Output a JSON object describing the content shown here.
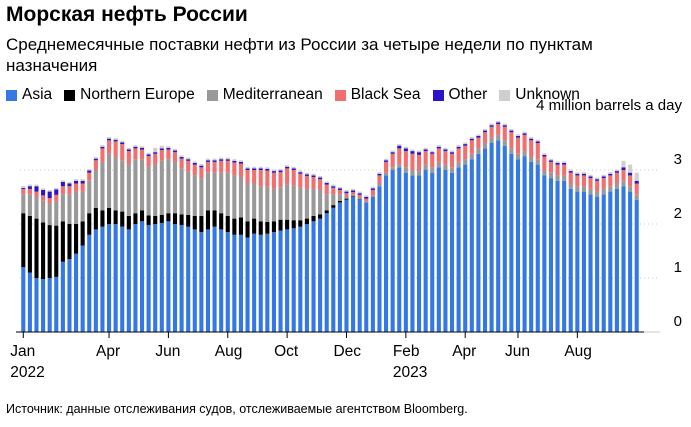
{
  "chart_data": {
    "type": "bar",
    "stacked": true,
    "title": "Морская нефть России",
    "subtitle": "Среднемесячные поставки нефти из России за четыре недели по пунктам назначения",
    "ylabel": "4 million barrels a day",
    "ylim": [
      0,
      4
    ],
    "yticks": [
      0,
      1,
      2,
      3
    ],
    "xticks": [
      {
        "label": "Jan",
        "sub": "2022",
        "week": 0
      },
      {
        "label": "Apr",
        "sub": "",
        "week": 13
      },
      {
        "label": "Jun",
        "sub": "",
        "week": 22
      },
      {
        "label": "Aug",
        "sub": "",
        "week": 31
      },
      {
        "label": "Oct",
        "sub": "",
        "week": 40
      },
      {
        "label": "Dec",
        "sub": "",
        "week": 49
      },
      {
        "label": "Feb",
        "sub": "2023",
        "week": 58
      },
      {
        "label": "Apr",
        "sub": "",
        "week": 67
      },
      {
        "label": "Jun",
        "sub": "",
        "week": 75
      },
      {
        "label": "Aug",
        "sub": "",
        "week": 84
      }
    ],
    "colors": {
      "Asia": "#3478e5",
      "Northern Europe": "#000000",
      "Mediterranean": "#999999",
      "Black Sea": "#f07070",
      "Other": "#2a14c8",
      "Unknown": "#cfcfcf"
    },
    "series": [
      {
        "name": "Asia",
        "values": [
          1.2,
          1.1,
          1.0,
          0.98,
          1.0,
          1.02,
          1.3,
          1.35,
          1.45,
          1.6,
          1.8,
          1.9,
          1.95,
          2.0,
          2.0,
          1.95,
          1.9,
          2.0,
          2.05,
          1.98,
          2.0,
          2.02,
          2.05,
          2.0,
          1.98,
          1.95,
          1.9,
          1.85,
          1.9,
          1.95,
          1.9,
          1.85,
          1.8,
          1.8,
          1.75,
          1.82,
          1.8,
          1.82,
          1.85,
          1.88,
          1.9,
          1.92,
          1.95,
          2.0,
          2.05,
          2.1,
          2.2,
          2.3,
          2.4,
          2.45,
          2.5,
          2.45,
          2.4,
          2.5,
          2.7,
          2.9,
          3.0,
          3.05,
          2.95,
          2.9,
          2.9,
          3.0,
          2.95,
          3.05,
          3.0,
          2.95,
          3.05,
          3.1,
          3.2,
          3.3,
          3.4,
          3.5,
          3.55,
          3.45,
          3.3,
          3.2,
          3.25,
          3.15,
          3.1,
          2.9,
          2.85,
          2.8,
          2.8,
          2.65,
          2.6,
          2.6,
          2.55,
          2.5,
          2.55,
          2.6,
          2.65,
          2.7,
          2.6,
          2.45
        ]
      },
      {
        "name": "Northern Europe",
        "values": [
          1.0,
          1.05,
          1.1,
          1.05,
          0.98,
          0.95,
          0.75,
          0.65,
          0.55,
          0.45,
          0.4,
          0.4,
          0.3,
          0.3,
          0.25,
          0.28,
          0.25,
          0.2,
          0.2,
          0.18,
          0.15,
          0.15,
          0.15,
          0.2,
          0.2,
          0.22,
          0.25,
          0.3,
          0.35,
          0.3,
          0.3,
          0.3,
          0.3,
          0.32,
          0.3,
          0.28,
          0.25,
          0.22,
          0.2,
          0.2,
          0.18,
          0.15,
          0.12,
          0.1,
          0.1,
          0.08,
          0.05,
          0.05,
          0.03,
          0.02,
          0.01,
          0.01,
          0.0,
          0,
          0,
          0,
          0,
          0,
          0,
          0,
          0,
          0,
          0,
          0,
          0,
          0,
          0,
          0,
          0,
          0,
          0,
          0,
          0,
          0,
          0,
          0,
          0,
          0,
          0,
          0,
          0,
          0,
          0,
          0,
          0,
          0,
          0,
          0,
          0,
          0,
          0,
          0,
          0,
          0
        ]
      },
      {
        "name": "Mediterranean",
        "values": [
          0.35,
          0.4,
          0.4,
          0.4,
          0.4,
          0.45,
          0.5,
          0.55,
          0.6,
          0.55,
          0.6,
          0.7,
          0.9,
          1.0,
          1.0,
          0.95,
          0.95,
          1.0,
          0.95,
          0.9,
          0.95,
          1.0,
          1.0,
          0.95,
          0.85,
          0.8,
          0.75,
          0.7,
          0.7,
          0.7,
          0.75,
          0.8,
          0.8,
          0.75,
          0.7,
          0.65,
          0.65,
          0.65,
          0.6,
          0.6,
          0.65,
          0.65,
          0.6,
          0.55,
          0.5,
          0.45,
          0.3,
          0.2,
          0.12,
          0.05,
          0.03,
          0.03,
          0.02,
          0.03,
          0.05,
          0.05,
          0.05,
          0.05,
          0.1,
          0.1,
          0.1,
          0.1,
          0.1,
          0.1,
          0.1,
          0.1,
          0.1,
          0.1,
          0.1,
          0.1,
          0.1,
          0.1,
          0.1,
          0.1,
          0.1,
          0.1,
          0.1,
          0.1,
          0.1,
          0.1,
          0.1,
          0.1,
          0.1,
          0.1,
          0.1,
          0.1,
          0.1,
          0.1,
          0.1,
          0.1,
          0.1,
          0.1,
          0.1,
          0.1
        ]
      },
      {
        "name": "Black Sea",
        "values": [
          0.1,
          0.1,
          0.1,
          0.1,
          0.1,
          0.12,
          0.15,
          0.15,
          0.15,
          0.15,
          0.15,
          0.18,
          0.25,
          0.25,
          0.28,
          0.3,
          0.25,
          0.2,
          0.18,
          0.2,
          0.2,
          0.2,
          0.18,
          0.18,
          0.18,
          0.2,
          0.2,
          0.2,
          0.2,
          0.2,
          0.22,
          0.22,
          0.24,
          0.25,
          0.25,
          0.25,
          0.3,
          0.3,
          0.3,
          0.28,
          0.3,
          0.28,
          0.26,
          0.24,
          0.22,
          0.2,
          0.18,
          0.12,
          0.08,
          0.05,
          0.05,
          0.05,
          0.05,
          0.1,
          0.15,
          0.2,
          0.25,
          0.3,
          0.3,
          0.3,
          0.28,
          0.25,
          0.25,
          0.25,
          0.25,
          0.25,
          0.25,
          0.25,
          0.25,
          0.2,
          0.2,
          0.2,
          0.2,
          0.25,
          0.3,
          0.3,
          0.3,
          0.3,
          0.3,
          0.25,
          0.2,
          0.2,
          0.2,
          0.2,
          0.2,
          0.2,
          0.2,
          0.2,
          0.2,
          0.2,
          0.2,
          0.2,
          0.2,
          0.2
        ]
      },
      {
        "name": "Other",
        "values": [
          0.02,
          0.05,
          0.1,
          0.1,
          0.12,
          0.1,
          0.08,
          0.05,
          0.05,
          0.05,
          0.04,
          0.03,
          0.03,
          0.03,
          0.03,
          0.03,
          0.03,
          0.03,
          0.03,
          0.03,
          0.03,
          0.03,
          0.03,
          0.03,
          0.03,
          0.03,
          0.03,
          0.03,
          0.03,
          0.03,
          0.03,
          0.03,
          0.03,
          0.03,
          0.03,
          0.03,
          0.03,
          0.03,
          0.03,
          0.03,
          0.03,
          0.03,
          0.03,
          0.03,
          0.03,
          0.03,
          0.03,
          0.03,
          0.03,
          0.03,
          0.03,
          0.03,
          0.03,
          0.03,
          0.03,
          0.03,
          0.03,
          0.05,
          0.05,
          0.05,
          0.05,
          0.03,
          0.03,
          0.03,
          0.03,
          0.03,
          0.03,
          0.03,
          0.03,
          0.03,
          0.03,
          0.03,
          0.03,
          0.03,
          0.03,
          0.03,
          0.03,
          0.03,
          0.03,
          0.03,
          0.03,
          0.03,
          0.03,
          0.03,
          0.03,
          0.03,
          0.03,
          0.03,
          0.03,
          0.03,
          0.03,
          0.05,
          0.05,
          0.05
        ]
      },
      {
        "name": "Unknown",
        "values": [
          0.03,
          0.03,
          0.03,
          0.03,
          0.03,
          0.03,
          0.03,
          0.03,
          0.03,
          0.03,
          0.03,
          0.03,
          0.03,
          0.03,
          0.03,
          0.03,
          0.03,
          0.03,
          0.03,
          0.03,
          0.08,
          0.05,
          0.03,
          0.03,
          0.03,
          0.03,
          0.03,
          0.03,
          0.03,
          0.03,
          0.03,
          0.03,
          0.03,
          0.03,
          0.03,
          0.03,
          0.03,
          0.03,
          0.03,
          0.03,
          0.03,
          0.03,
          0.03,
          0.03,
          0.03,
          0.03,
          0.03,
          0.03,
          0.03,
          0.03,
          0.03,
          0.03,
          0.03,
          0.03,
          0.03,
          0.03,
          0.03,
          0.03,
          0.03,
          0.03,
          0.03,
          0.03,
          0.03,
          0.03,
          0.03,
          0.03,
          0.03,
          0.03,
          0.03,
          0.03,
          0.03,
          0.03,
          0.03,
          0.03,
          0.03,
          0.03,
          0.03,
          0.03,
          0.03,
          0.03,
          0.03,
          0.03,
          0.03,
          0.03,
          0.03,
          0.03,
          0.03,
          0.03,
          0.03,
          0.03,
          0.03,
          0.12,
          0.15,
          0.15
        ]
      }
    ],
    "legend": "top",
    "grid": true
  },
  "source": "Источник: данные отслеживания судов, отслеживаемые агентством Bloomberg."
}
